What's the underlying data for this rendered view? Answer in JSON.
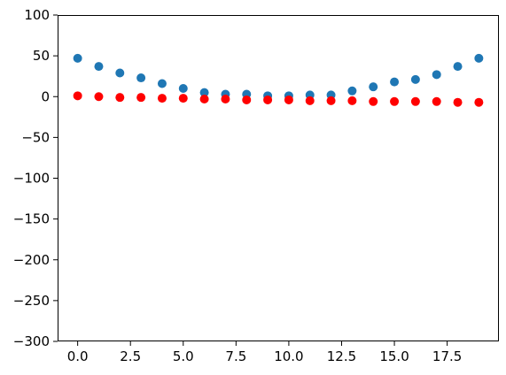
{
  "chart_data": {
    "type": "scatter",
    "title": "",
    "xlabel": "",
    "ylabel": "",
    "xlim": [
      -0.95,
      19.95
    ],
    "ylim": [
      -300,
      100
    ],
    "grid": false,
    "legend": "none",
    "x_ticks": [
      0.0,
      2.5,
      5.0,
      7.5,
      10.0,
      12.5,
      15.0,
      17.5
    ],
    "x_tick_labels": [
      "0.0",
      "2.5",
      "5.0",
      "7.5",
      "10.0",
      "12.5",
      "15.0",
      "17.5"
    ],
    "y_ticks": [
      100,
      50,
      0,
      -50,
      -100,
      -150,
      -200,
      -250,
      -300
    ],
    "y_tick_labels": [
      "100",
      "50",
      "0",
      "−50",
      "−100",
      "−150",
      "−200",
      "−250",
      "−300"
    ],
    "series": [
      {
        "color": "#1f77b4",
        "x": [
          0,
          1,
          2,
          3,
          4,
          5,
          6,
          7,
          8,
          9,
          10,
          11,
          12,
          13,
          14,
          15,
          16,
          17,
          18,
          19
        ],
        "y": [
          47,
          37,
          29,
          23,
          16,
          10,
          5,
          3,
          3,
          1,
          1,
          2,
          2,
          7,
          12,
          18,
          21,
          27,
          37,
          47
        ]
      },
      {
        "color": "#ff0000",
        "x": [
          0,
          1,
          2,
          3,
          4,
          5,
          6,
          7,
          8,
          9,
          10,
          11,
          12,
          13,
          14,
          15,
          16,
          17,
          18,
          19
        ],
        "y": [
          1,
          0,
          -1,
          -1,
          -2,
          -2,
          -3,
          -3,
          -4,
          -4,
          -4,
          -5,
          -5,
          -5,
          -6,
          -6,
          -6,
          -6,
          -7,
          -7
        ]
      }
    ]
  }
}
